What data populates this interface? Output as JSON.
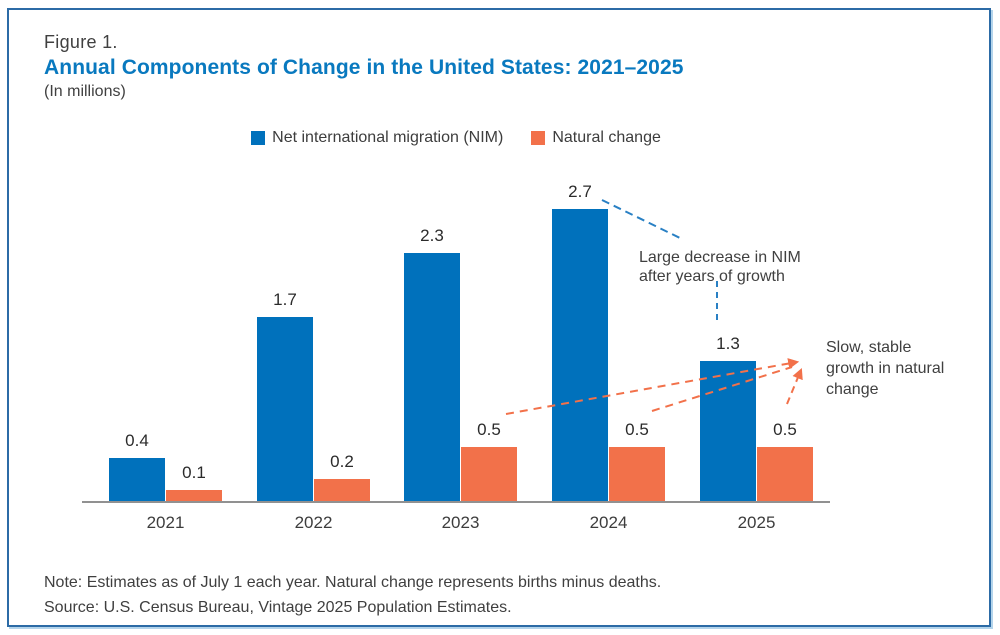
{
  "header": {
    "figure_label": "Figure 1.",
    "title": "Annual Components of Change in the United States: 2021–2025",
    "subtitle": "(In millions)"
  },
  "legend": {
    "items": [
      {
        "label": "Net international migration (NIM)",
        "color": "#0071BC",
        "icon": "blue-square-swatch"
      },
      {
        "label": "Natural change",
        "color": "#F2714A",
        "icon": "orange-square-swatch"
      }
    ]
  },
  "chart_data": {
    "type": "bar",
    "categories": [
      "2021",
      "2022",
      "2023",
      "2024",
      "2025"
    ],
    "series": [
      {
        "name": "Net international migration (NIM)",
        "color": "#0071BC",
        "values": [
          0.4,
          1.7,
          2.3,
          2.7,
          1.3
        ]
      },
      {
        "name": "Natural change",
        "color": "#F2714A",
        "values": [
          0.1,
          0.2,
          0.5,
          0.5,
          0.5
        ]
      }
    ],
    "title": "Annual Components of Change in the United States: 2021–2025",
    "xlabel": "",
    "ylabel": "",
    "unit": "millions",
    "ylim": [
      0,
      3
    ],
    "grid": false,
    "value_labels": true,
    "legend_position": "top",
    "axis_color": "#919191"
  },
  "annotations": {
    "nim_decrease": "Large decrease in NIM\nafter years of growth",
    "natural_growth": "Slow, stable\ngrowth in natural\nchange",
    "nim_line_color": "#2980C4",
    "natural_line_color": "#F2714A"
  },
  "footer": {
    "note": "Note: Estimates as of July 1 each year. Natural change represents births minus deaths.",
    "source": "Source: U.S. Census Bureau, Vintage 2025 Population Estimates."
  },
  "colors": {
    "title": "#0979BF",
    "border": "#2C6BA6",
    "nim": "#0071BC",
    "natural": "#F2714A"
  }
}
